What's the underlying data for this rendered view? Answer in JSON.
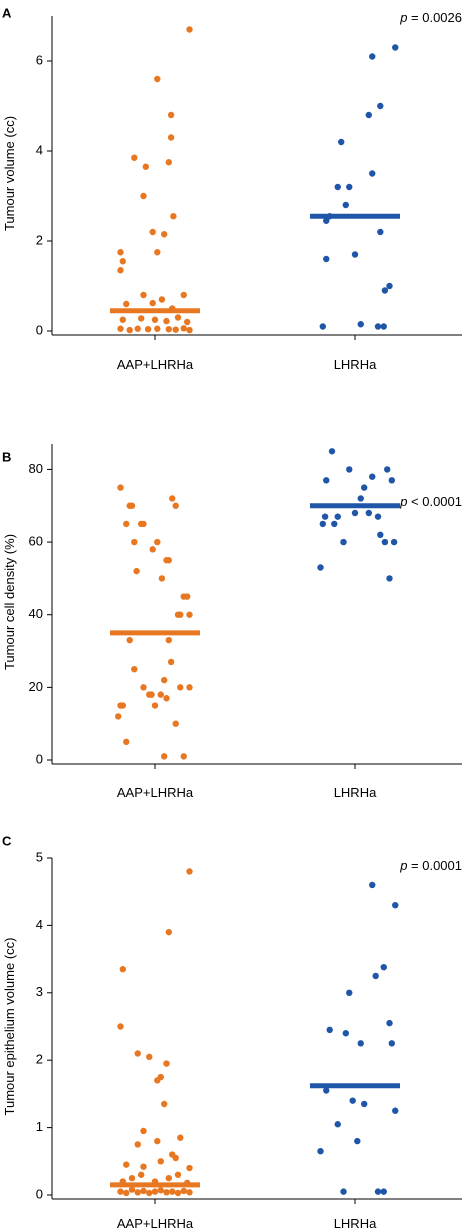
{
  "colors": {
    "AAP+LHRHa": "#e87722",
    "LHRHa": "#1f56a8"
  },
  "chart_data": [
    {
      "type": "scatter",
      "panel_label": "A",
      "p_value": {
        "symbol": "p",
        "text": " = 0.0026"
      },
      "ylabel": "Tumour volume (cc)",
      "xlabel": "",
      "categories": [
        "AAP+LHRHa",
        "LHRHa"
      ],
      "ylim": [
        0,
        7
      ],
      "yticks": [
        0,
        2,
        4,
        6
      ],
      "series": [
        {
          "name": "AAP+LHRHa",
          "median": 0.45,
          "points": [
            [
              -0.3,
              0.05
            ],
            [
              -0.22,
              0.02
            ],
            [
              -0.15,
              0.05
            ],
            [
              -0.06,
              0.04
            ],
            [
              0.02,
              0.05
            ],
            [
              0.12,
              0.04
            ],
            [
              0.18,
              0.03
            ],
            [
              0.25,
              0.06
            ],
            [
              0.3,
              0.02
            ],
            [
              -0.28,
              0.25
            ],
            [
              -0.12,
              0.28
            ],
            [
              0.0,
              0.25
            ],
            [
              0.1,
              0.22
            ],
            [
              0.2,
              0.3
            ],
            [
              0.28,
              0.2
            ],
            [
              -0.25,
              0.6
            ],
            [
              -0.1,
              0.8
            ],
            [
              -0.02,
              0.62
            ],
            [
              0.06,
              0.7
            ],
            [
              0.15,
              0.5
            ],
            [
              0.25,
              0.8
            ],
            [
              -0.3,
              1.35
            ],
            [
              -0.28,
              1.55
            ],
            [
              -0.3,
              1.75
            ],
            [
              -0.18,
              3.85
            ],
            [
              -0.1,
              3.0
            ],
            [
              -0.08,
              3.65
            ],
            [
              -0.02,
              2.2
            ],
            [
              0.02,
              1.75
            ],
            [
              0.08,
              2.15
            ],
            [
              0.12,
              3.75
            ],
            [
              0.16,
              2.55
            ],
            [
              0.14,
              4.3
            ],
            [
              0.14,
              4.8
            ],
            [
              0.02,
              5.6
            ],
            [
              0.3,
              6.7
            ]
          ]
        },
        {
          "name": "LHRHa",
          "median": 2.55,
          "points": [
            [
              -0.28,
              0.1
            ],
            [
              -0.25,
              1.6
            ],
            [
              -0.25,
              2.45
            ],
            [
              -0.22,
              2.55
            ],
            [
              -0.15,
              3.2
            ],
            [
              -0.12,
              4.2
            ],
            [
              -0.08,
              2.8
            ],
            [
              -0.05,
              3.2
            ],
            [
              0.0,
              1.7
            ],
            [
              0.05,
              0.15
            ],
            [
              0.12,
              4.8
            ],
            [
              0.15,
              3.5
            ],
            [
              0.2,
              0.1
            ],
            [
              0.22,
              2.2
            ],
            [
              0.22,
              5.0
            ],
            [
              0.26,
              0.9
            ],
            [
              0.3,
              1.0
            ],
            [
              0.35,
              6.3
            ],
            [
              0.15,
              6.1
            ],
            [
              0.25,
              0.1
            ]
          ]
        }
      ]
    },
    {
      "type": "scatter",
      "panel_label": "B",
      "p_value": {
        "symbol": "p",
        "text": " < 0.0001"
      },
      "ylabel": "Tumour cell density (%)",
      "xlabel": "",
      "categories": [
        "AAP+LHRHa",
        "LHRHa"
      ],
      "ylim": [
        0,
        87
      ],
      "yticks": [
        0,
        20,
        40,
        60,
        80
      ],
      "series": [
        {
          "name": "AAP+LHRHa",
          "median": 35,
          "points": [
            [
              -0.32,
              12
            ],
            [
              -0.3,
              15
            ],
            [
              -0.28,
              15
            ],
            [
              -0.25,
              5
            ],
            [
              -0.22,
              33
            ],
            [
              -0.18,
              25
            ],
            [
              -0.1,
              20
            ],
            [
              -0.05,
              18
            ],
            [
              -0.03,
              18
            ],
            [
              0.0,
              15
            ],
            [
              0.05,
              18
            ],
            [
              0.08,
              22
            ],
            [
              0.1,
              17
            ],
            [
              0.14,
              27
            ],
            [
              0.12,
              33
            ],
            [
              0.18,
              10
            ],
            [
              0.22,
              20
            ],
            [
              0.3,
              20
            ],
            [
              0.25,
              1
            ],
            [
              0.08,
              1
            ],
            [
              -0.3,
              75
            ],
            [
              -0.25,
              65
            ],
            [
              -0.22,
              70
            ],
            [
              -0.2,
              70
            ],
            [
              -0.18,
              60
            ],
            [
              -0.16,
              52
            ],
            [
              -0.12,
              65
            ],
            [
              -0.1,
              65
            ],
            [
              -0.02,
              58
            ],
            [
              0.02,
              60
            ],
            [
              0.06,
              50
            ],
            [
              0.1,
              55
            ],
            [
              0.12,
              55
            ],
            [
              0.15,
              72
            ],
            [
              0.18,
              70
            ],
            [
              0.2,
              40
            ],
            [
              0.25,
              45
            ],
            [
              0.28,
              45
            ],
            [
              0.22,
              40
            ],
            [
              0.3,
              40
            ]
          ]
        },
        {
          "name": "LHRHa",
          "median": 70,
          "points": [
            [
              -0.3,
              53
            ],
            [
              -0.28,
              65
            ],
            [
              -0.26,
              67
            ],
            [
              -0.25,
              77
            ],
            [
              -0.2,
              85
            ],
            [
              -0.18,
              65
            ],
            [
              -0.15,
              67
            ],
            [
              -0.1,
              60
            ],
            [
              -0.05,
              80
            ],
            [
              0.0,
              68
            ],
            [
              0.05,
              72
            ],
            [
              0.08,
              75
            ],
            [
              0.12,
              68
            ],
            [
              0.15,
              78
            ],
            [
              0.2,
              67
            ],
            [
              0.22,
              62
            ],
            [
              0.26,
              60
            ],
            [
              0.28,
              80
            ],
            [
              0.32,
              77
            ],
            [
              0.3,
              50
            ],
            [
              0.34,
              60
            ]
          ]
        }
      ]
    },
    {
      "type": "scatter",
      "panel_label": "C",
      "p_value": {
        "symbol": "p",
        "text": " = 0.0001"
      },
      "ylabel": "Tumour epithelium volume (cc)",
      "xlabel": "",
      "categories": [
        "AAP+LHRHa",
        "LHRHa"
      ],
      "ylim": [
        0,
        5
      ],
      "yticks": [
        0,
        1,
        2,
        3,
        4,
        5
      ],
      "series": [
        {
          "name": "AAP+LHRHa",
          "median": 0.15,
          "points": [
            [
              -0.3,
              0.05
            ],
            [
              -0.25,
              0.03
            ],
            [
              -0.2,
              0.08
            ],
            [
              -0.15,
              0.04
            ],
            [
              -0.1,
              0.06
            ],
            [
              -0.05,
              0.03
            ],
            [
              0.0,
              0.05
            ],
            [
              0.05,
              0.07
            ],
            [
              0.1,
              0.04
            ],
            [
              0.15,
              0.05
            ],
            [
              0.2,
              0.03
            ],
            [
              0.25,
              0.06
            ],
            [
              0.3,
              0.04
            ],
            [
              -0.28,
              0.2
            ],
            [
              -0.2,
              0.25
            ],
            [
              -0.12,
              0.3
            ],
            [
              0.0,
              0.2
            ],
            [
              0.12,
              0.25
            ],
            [
              0.2,
              0.3
            ],
            [
              0.28,
              0.18
            ],
            [
              -0.25,
              0.45
            ],
            [
              -0.1,
              0.42
            ],
            [
              0.05,
              0.5
            ],
            [
              0.18,
              0.55
            ],
            [
              0.3,
              0.4
            ],
            [
              -0.15,
              0.75
            ],
            [
              -0.1,
              0.95
            ],
            [
              0.02,
              0.8
            ],
            [
              0.15,
              0.6
            ],
            [
              0.22,
              0.85
            ],
            [
              -0.3,
              2.5
            ],
            [
              -0.28,
              3.35
            ],
            [
              -0.15,
              2.1
            ],
            [
              -0.05,
              2.05
            ],
            [
              0.02,
              1.7
            ],
            [
              0.05,
              1.75
            ],
            [
              0.08,
              1.35
            ],
            [
              0.1,
              1.95
            ],
            [
              0.12,
              3.9
            ],
            [
              0.3,
              4.8
            ]
          ]
        },
        {
          "name": "LHRHa",
          "median": 1.62,
          "points": [
            [
              -0.3,
              0.65
            ],
            [
              -0.25,
              1.55
            ],
            [
              -0.22,
              2.45
            ],
            [
              -0.15,
              1.05
            ],
            [
              -0.1,
              0.05
            ],
            [
              -0.08,
              2.4
            ],
            [
              -0.05,
              3.0
            ],
            [
              -0.02,
              1.4
            ],
            [
              0.02,
              0.8
            ],
            [
              0.05,
              2.25
            ],
            [
              0.08,
              1.35
            ],
            [
              0.15,
              4.6
            ],
            [
              0.18,
              3.25
            ],
            [
              0.2,
              0.05
            ],
            [
              0.25,
              3.38
            ],
            [
              0.25,
              0.05
            ],
            [
              0.3,
              2.55
            ],
            [
              0.32,
              2.25
            ],
            [
              0.35,
              1.25
            ],
            [
              0.35,
              4.3
            ]
          ]
        }
      ]
    }
  ]
}
